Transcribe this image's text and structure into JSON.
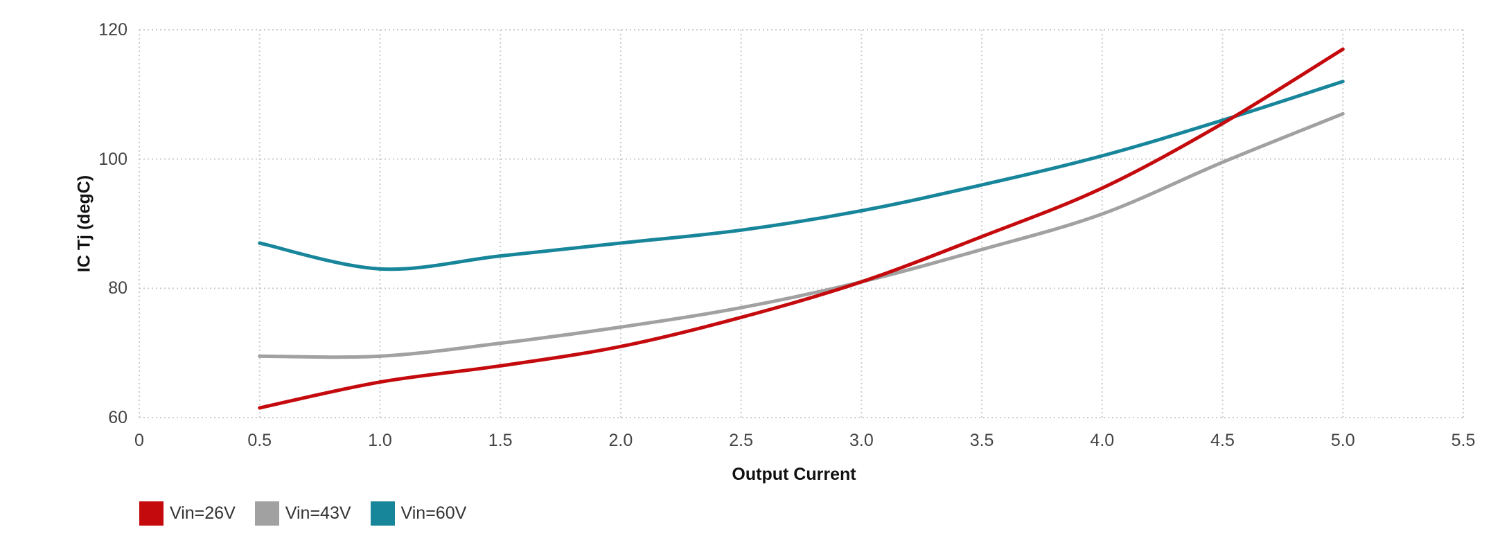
{
  "chart_data": {
    "type": "line",
    "title": "",
    "xlabel": "Output Current",
    "ylabel": "IC Tj (degC)",
    "xlim": [
      0,
      5.5
    ],
    "ylim": [
      60,
      120
    ],
    "x_tick_values": [
      0,
      0.5,
      1,
      1.5,
      2,
      2.5,
      3,
      3.5,
      4,
      4.5,
      5,
      5.5
    ],
    "x_tick_labels": [
      "0",
      "0.5",
      "1.0",
      "1.5",
      "2.0",
      "2.5",
      "3.0",
      "3.5",
      "4.0",
      "4.5",
      "5.0",
      "5.5"
    ],
    "y_tick_values": [
      60,
      80,
      100,
      120
    ],
    "y_tick_labels": [
      "60",
      "80",
      "100",
      "120"
    ],
    "grid": "dotted",
    "legend_position": "bottom-left",
    "x": [
      0.5,
      1,
      1.5,
      2,
      2.5,
      3,
      3.5,
      4,
      4.5,
      5
    ],
    "series": [
      {
        "name": "Vin=26V",
        "color": "#c40a0d",
        "values": [
          61.5,
          65.5,
          68,
          71,
          75.5,
          81,
          88,
          95.5,
          105.5,
          117
        ]
      },
      {
        "name": "Vin=43V",
        "color": "#a1a1a1",
        "values": [
          69.5,
          69.5,
          71.5,
          74,
          77,
          81,
          86,
          91.5,
          99.5,
          107
        ]
      },
      {
        "name": "Vin=60V",
        "color": "#17859a",
        "values": [
          87,
          83,
          85,
          87,
          89,
          92,
          96,
          100.5,
          106,
          112
        ]
      }
    ]
  },
  "colors": {
    "background": "#ffffff",
    "grid": "#cccccc",
    "tick_label": "#444444",
    "axis_title": "#111111",
    "legend_label": "#333333"
  }
}
